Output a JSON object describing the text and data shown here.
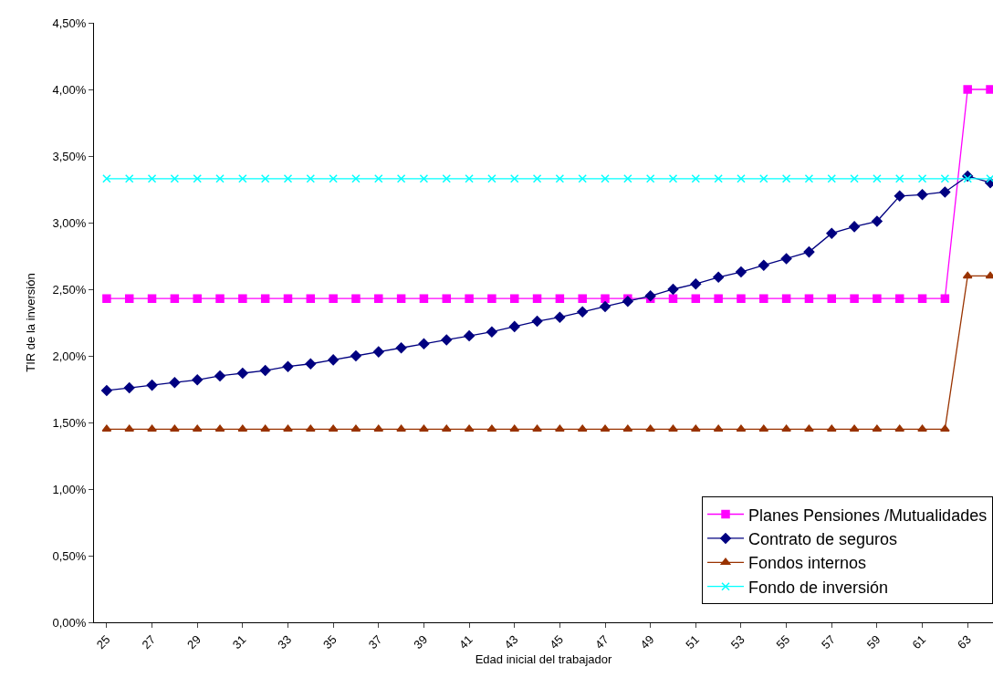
{
  "chart_data": {
    "type": "line",
    "xlabel": "Edad inicial del trabajador",
    "ylabel": "TIR de la inversión",
    "categories": [
      "25",
      null,
      "27",
      null,
      "29",
      null,
      "31",
      null,
      "33",
      null,
      "35",
      null,
      "37",
      null,
      "39",
      null,
      "41",
      null,
      "43",
      null,
      "45",
      null,
      "47",
      null,
      "49",
      null,
      "51",
      null,
      "53",
      null,
      "55",
      null,
      "57",
      null,
      "59",
      null,
      "61",
      null,
      "63",
      null
    ],
    "series": [
      {
        "name": "Planes Pensiones /Mutualidades",
        "color": "#ff00ff",
        "marker": "square",
        "values": [
          2.43,
          2.43,
          2.43,
          2.43,
          2.43,
          2.43,
          2.43,
          2.43,
          2.43,
          2.43,
          2.43,
          2.43,
          2.43,
          2.43,
          2.43,
          2.43,
          2.43,
          2.43,
          2.43,
          2.43,
          2.43,
          2.43,
          2.43,
          2.43,
          2.43,
          2.43,
          2.43,
          2.43,
          2.43,
          2.43,
          2.43,
          2.43,
          2.43,
          2.43,
          2.43,
          2.43,
          2.43,
          2.43,
          4.0,
          4.0
        ]
      },
      {
        "name": "Contrato de seguros",
        "color": "#000080",
        "marker": "diamond",
        "values": [
          1.74,
          1.76,
          1.78,
          1.8,
          1.82,
          1.85,
          1.87,
          1.89,
          1.92,
          1.94,
          1.97,
          2.0,
          2.03,
          2.06,
          2.09,
          2.12,
          2.15,
          2.18,
          2.22,
          2.26,
          2.29,
          2.33,
          2.37,
          2.41,
          2.45,
          2.5,
          2.54,
          2.59,
          2.63,
          2.68,
          2.73,
          2.78,
          2.92,
          2.97,
          3.01,
          3.2,
          3.21,
          3.23,
          3.35,
          3.3
        ]
      },
      {
        "name": "Fondos internos",
        "color": "#993300",
        "marker": "triangle",
        "values": [
          1.45,
          1.45,
          1.45,
          1.45,
          1.45,
          1.45,
          1.45,
          1.45,
          1.45,
          1.45,
          1.45,
          1.45,
          1.45,
          1.45,
          1.45,
          1.45,
          1.45,
          1.45,
          1.45,
          1.45,
          1.45,
          1.45,
          1.45,
          1.45,
          1.45,
          1.45,
          1.45,
          1.45,
          1.45,
          1.45,
          1.45,
          1.45,
          1.45,
          1.45,
          1.45,
          1.45,
          1.45,
          1.45,
          2.6,
          2.6
        ]
      },
      {
        "name": "Fondo de inversión",
        "color": "#00ffff",
        "marker": "cross",
        "values": [
          3.33,
          3.33,
          3.33,
          3.33,
          3.33,
          3.33,
          3.33,
          3.33,
          3.33,
          3.33,
          3.33,
          3.33,
          3.33,
          3.33,
          3.33,
          3.33,
          3.33,
          3.33,
          3.33,
          3.33,
          3.33,
          3.33,
          3.33,
          3.33,
          3.33,
          3.33,
          3.33,
          3.33,
          3.33,
          3.33,
          3.33,
          3.33,
          3.33,
          3.33,
          3.33,
          3.33,
          3.33,
          3.33,
          3.33,
          3.33
        ]
      }
    ],
    "ylim": [
      0,
      4.5
    ],
    "yticks": [
      {
        "value": 0,
        "label": "0,00%"
      },
      {
        "value": 0.5,
        "label": "0,50%"
      },
      {
        "value": 1,
        "label": "1,00%"
      },
      {
        "value": 1.5,
        "label": "1,50%"
      },
      {
        "value": 2,
        "label": "2,00%"
      },
      {
        "value": 2.5,
        "label": "2,50%"
      },
      {
        "value": 3,
        "label": "3,00%"
      },
      {
        "value": 3.5,
        "label": "3,50%"
      },
      {
        "value": 4,
        "label": "4,00%"
      },
      {
        "value": 4.5,
        "label": "4,50%"
      }
    ],
    "legend": "bottom right",
    "line_style": "solid"
  }
}
